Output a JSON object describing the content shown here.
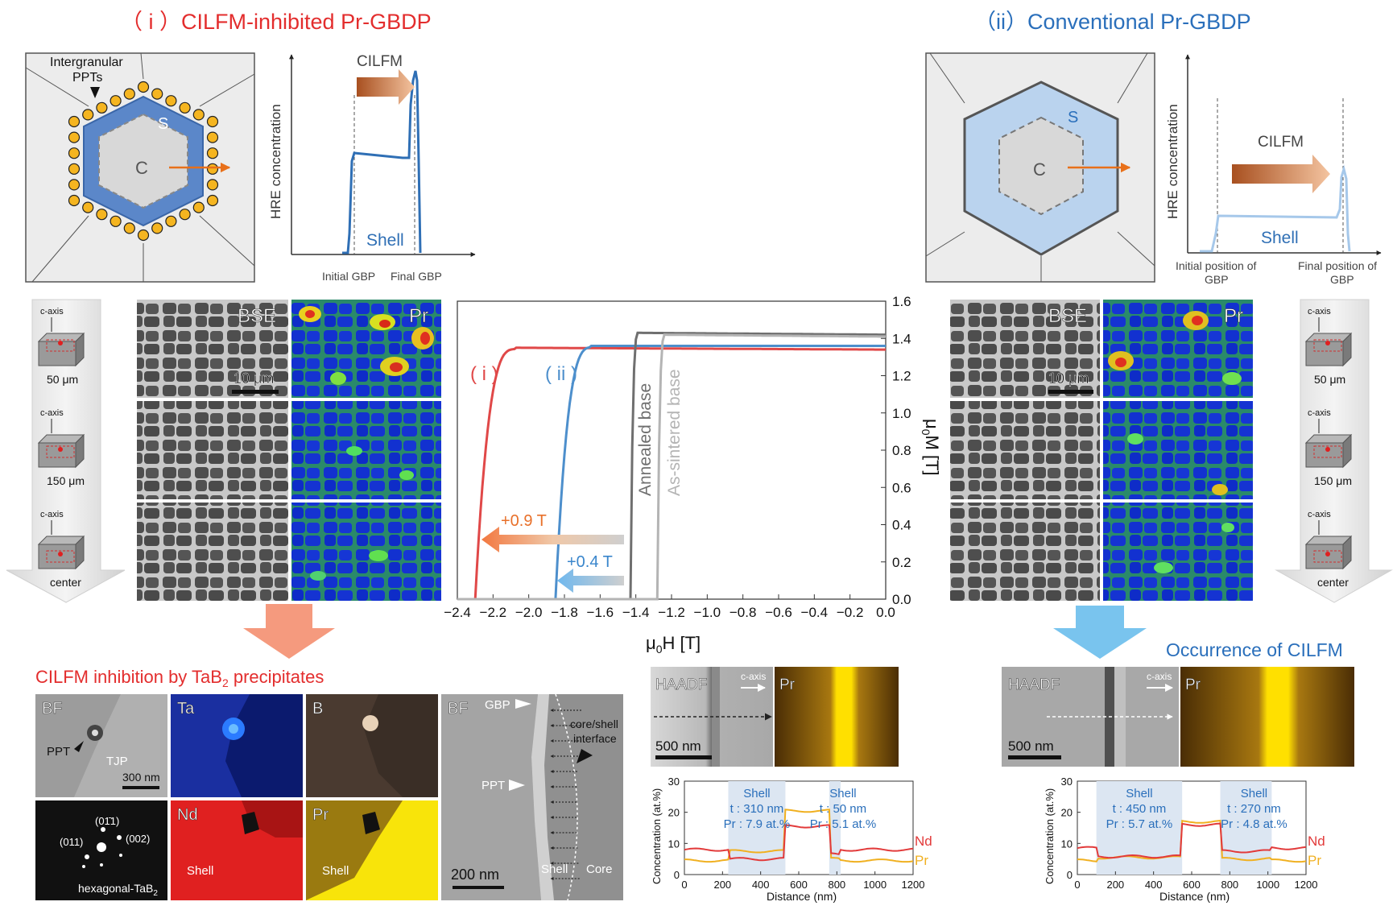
{
  "colors": {
    "red": "#e32d2d",
    "blue": "#2a6fbb",
    "orange": "#e07020",
    "shell_fill": "#5b87c9",
    "light_shell": "#bad3ee",
    "gray_curve": "#707070",
    "light_gray_curve": "#b9b9b9",
    "nd_line": "#e23a3a",
    "pr_line": "#f0b020"
  },
  "titles": {
    "left": "（ i ）CILFM-inhibited Pr-GBDP",
    "right": "（ii）Conventional Pr-GBDP",
    "inhibition": "CILFM inhibition by TaB",
    "inhibition_sub": "2",
    "inhibition_tail": " precipitates",
    "occurrence": "Occurrence of CILFM"
  },
  "schematic_left": {
    "ppt_label_1": "Intergranular",
    "ppt_label_2": "PPTs",
    "shell_letter": "S",
    "core_letter": "C"
  },
  "schematic_right": {
    "shell_letter": "S",
    "core_letter": "C"
  },
  "profile_left": {
    "ylabel": "HRE concentration",
    "arrow_label": "CILFM",
    "shell_label": "Shell",
    "x_label_1": "Initial GBP",
    "x_label_2": "Final GBP"
  },
  "profile_right": {
    "ylabel": "HRE concentration",
    "arrow_label": "CILFM",
    "shell_label": "Shell",
    "x_label_1a": "Initial position of",
    "x_label_1b": "GBP",
    "x_label_2a": "Final position of",
    "x_label_2b": "GBP"
  },
  "depth_column": {
    "axis_label": "c-axis",
    "depths": [
      "50 μm",
      "150 μm",
      "center"
    ]
  },
  "micrographs": {
    "bse_label": "BSE",
    "pr_label": "Pr",
    "scale_label": "10 μm"
  },
  "chart_data": {
    "type": "line",
    "xlabel": "μ0H [T]",
    "ylabel": "μ0M [T]",
    "xlim": [
      -2.4,
      0.0
    ],
    "ylim": [
      0.0,
      1.6
    ],
    "xticks": [
      "−2.4",
      "−2.2",
      "−2.0",
      "−1.8",
      "−1.6",
      "−1.4",
      "−1.2",
      "−1.0",
      "−0.8",
      "−0.6",
      "−0.4",
      "−0.2",
      "0.0"
    ],
    "yticks": [
      "0.0",
      "0.2",
      "0.4",
      "0.6",
      "0.8",
      "1.0",
      "1.2",
      "1.4",
      "1.6"
    ],
    "series": [
      {
        "name": "( i )",
        "color": "#e04848",
        "coercivity": -2.3,
        "Ms": 1.35,
        "Mr": 1.34,
        "knee": 0.22
      },
      {
        "name": "( ii )",
        "color": "#4d8fcc",
        "coercivity": -1.85,
        "Ms": 1.36,
        "Mr": 1.36,
        "knee": 0.2
      },
      {
        "name": "Annealed base",
        "color": "#6f6f6f",
        "coercivity": -1.43,
        "Ms": 1.43,
        "Mr": 1.42,
        "knee": 0.04
      },
      {
        "name": "As-sintered base",
        "color": "#b4b4b4",
        "coercivity": -1.28,
        "Ms": 1.42,
        "Mr": 1.41,
        "knee": 0.04
      }
    ],
    "annotations": [
      "+0.9 T",
      "+0.4 T"
    ]
  },
  "tem_left": {
    "bf": "BF",
    "ppt": "PPT",
    "tjp": "TJP",
    "scale": "300 nm",
    "ta": "Ta",
    "b": "B",
    "nd": "Nd",
    "pr": "Pr",
    "shell": "Shell",
    "fft_011a": "(01̄1)",
    "fft_011b": "(011)",
    "fft_002": "(002)",
    "fft_phase": "hexagonal-TaB",
    "fft_phase_sub": "2"
  },
  "tem_bf": {
    "bf": "BF",
    "gbp": "GBP",
    "ppt": "PPT",
    "interface_1": "core/shell",
    "interface_2": "interface",
    "shell": "Shell",
    "core": "Core",
    "scale": "200 nm"
  },
  "haadf": {
    "label": "HAADF",
    "c_axis": "c-axis",
    "pr": "Pr",
    "scale": "500 nm"
  },
  "line_profile_left": {
    "ylabel": "Concentration (at.%)",
    "xlabel": "Distance (nm)",
    "xticks": [
      "0",
      "200",
      "400",
      "600",
      "800",
      "1000",
      "1200"
    ],
    "yticks": [
      "0",
      "10",
      "20",
      "30"
    ],
    "shell1": [
      "Shell",
      "t : 310 nm",
      "Pr : 7.9 at.%"
    ],
    "shell2": [
      "Shell",
      "t : 50 nm",
      "Pr : 5.1 at.%"
    ],
    "legend_nd": "Nd",
    "legend_pr": "Pr"
  },
  "line_profile_right": {
    "ylabel": "Concentration (at.%)",
    "xlabel": "Distance (nm)",
    "xticks": [
      "0",
      "200",
      "400",
      "600",
      "800",
      "1000",
      "1200"
    ],
    "yticks": [
      "0",
      "10",
      "20",
      "30"
    ],
    "shell1": [
      "Shell",
      "t : 450 nm",
      "Pr : 5.7 at.%"
    ],
    "shell2": [
      "Shell",
      "t : 270 nm",
      "Pr : 4.8 at.%"
    ],
    "legend_nd": "Nd",
    "legend_pr": "Pr"
  }
}
